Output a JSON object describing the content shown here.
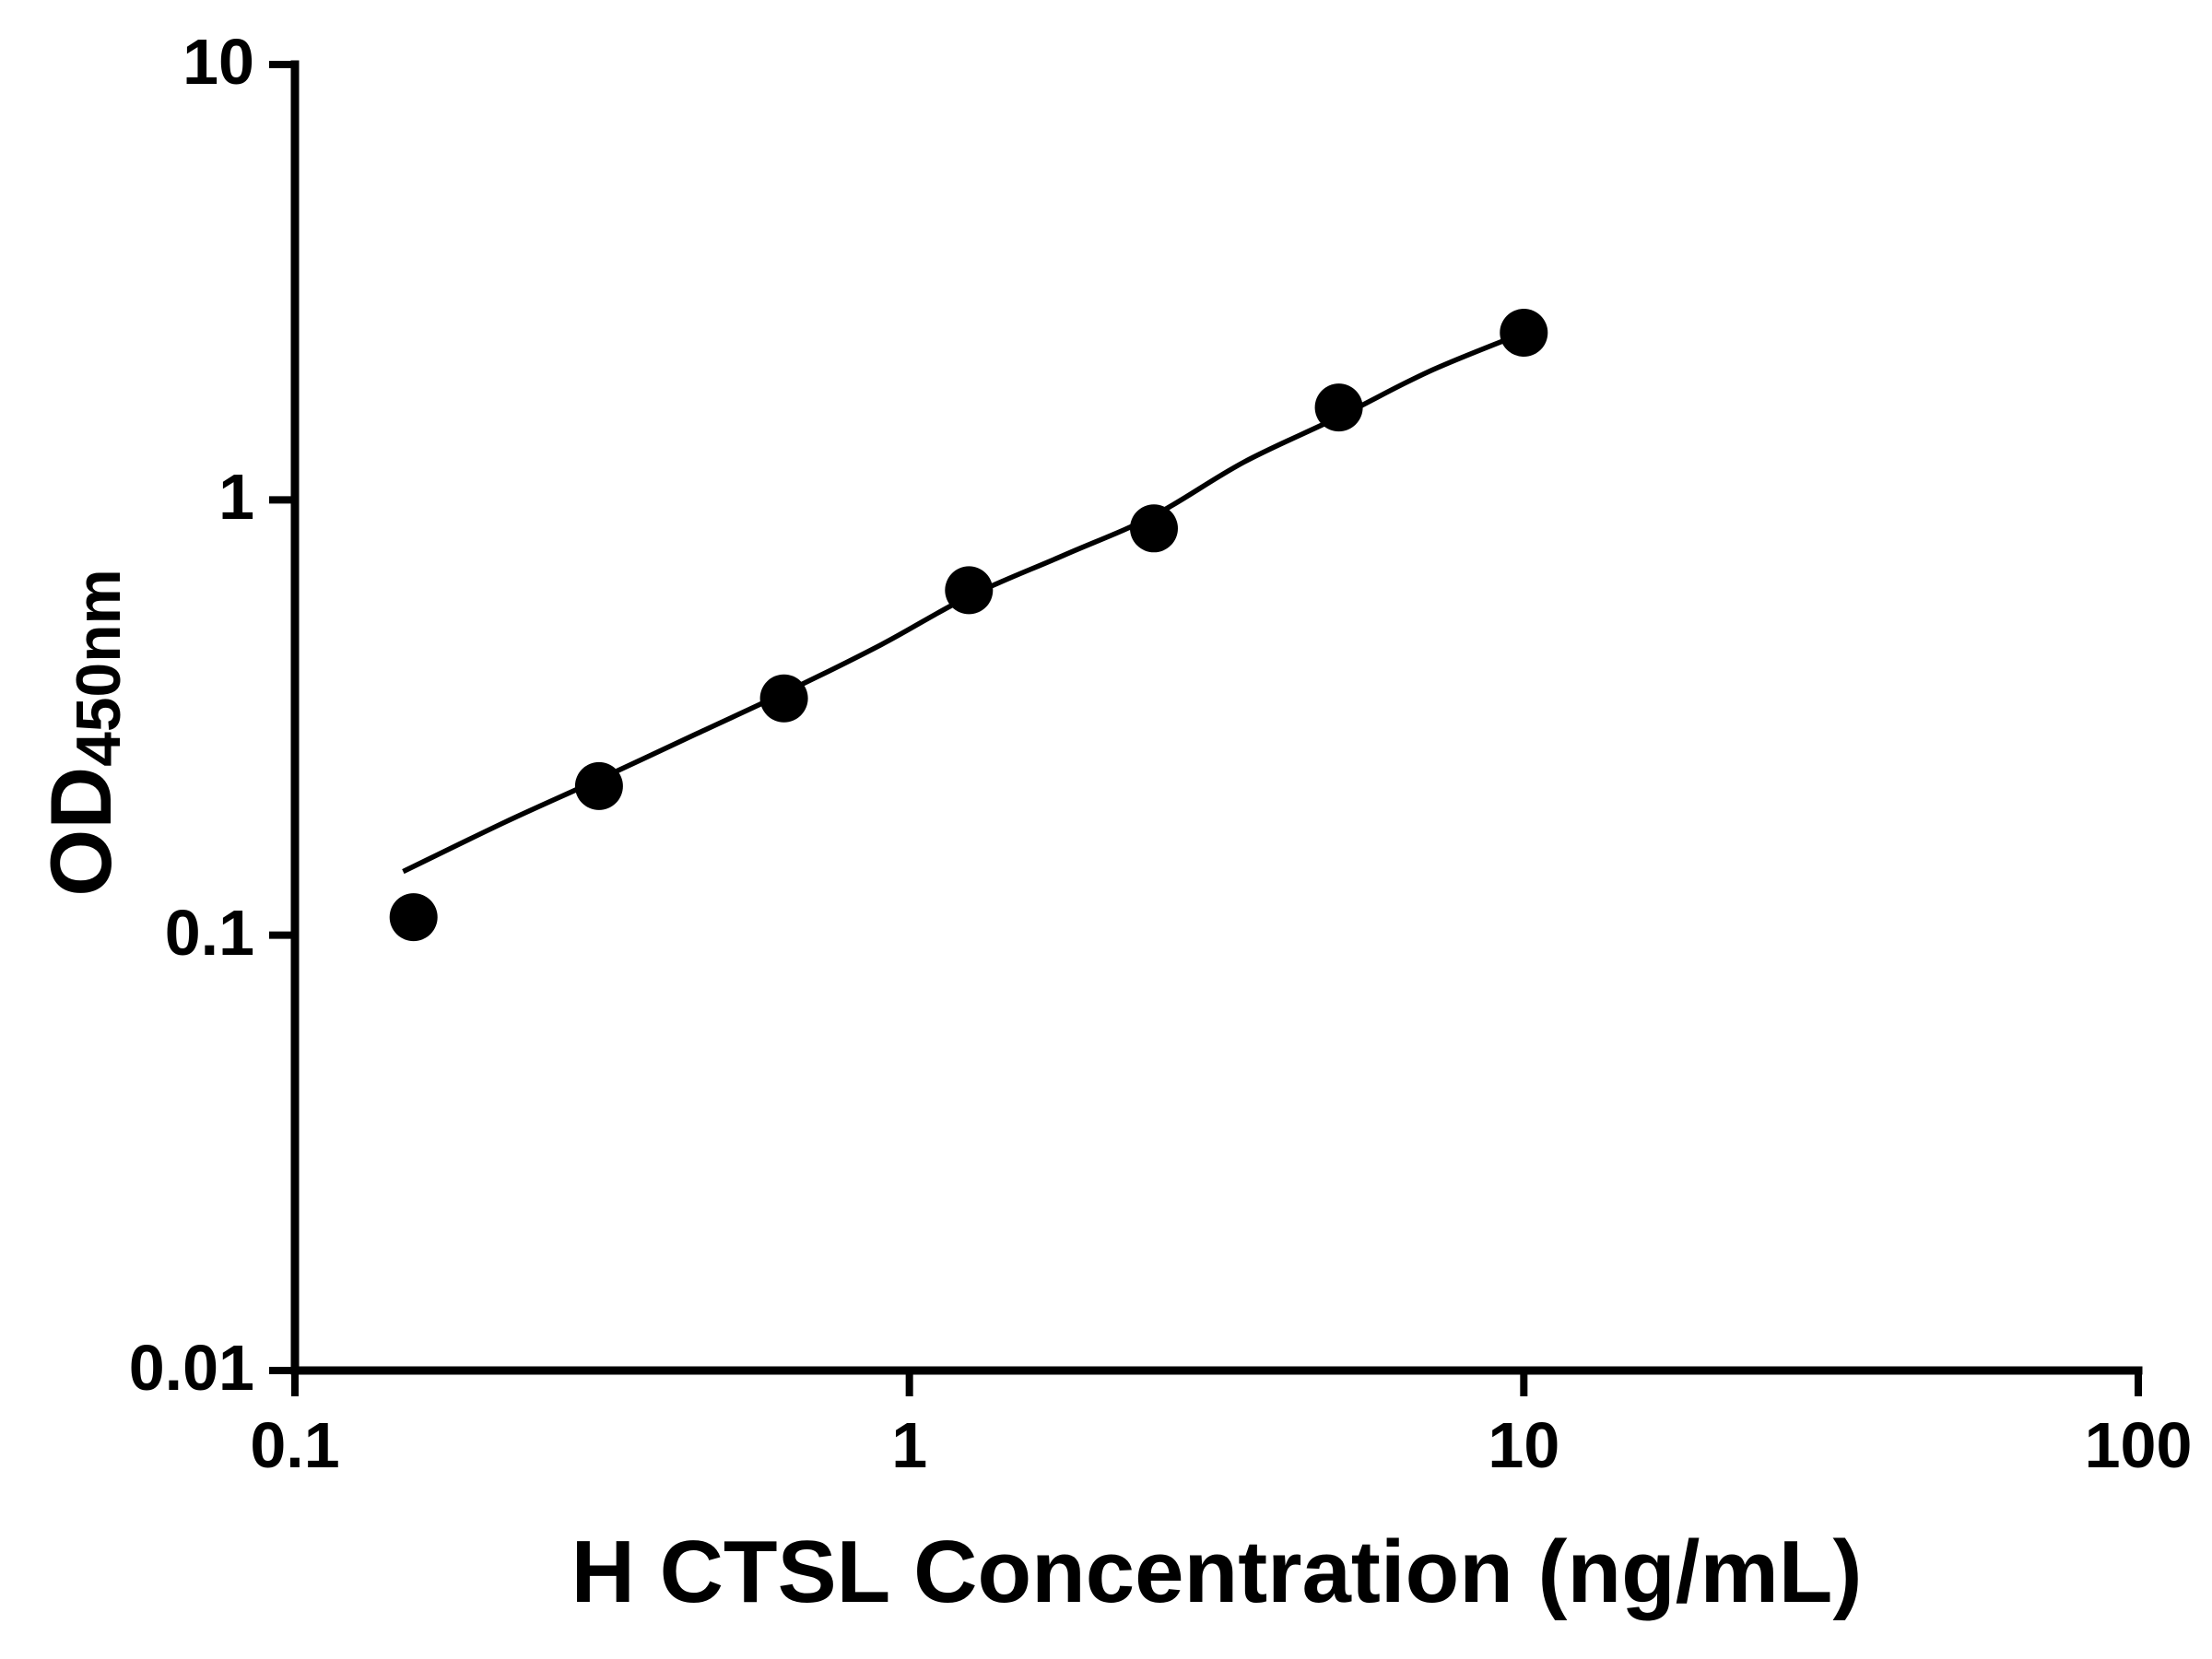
{
  "figure": {
    "background": "#ffffff"
  },
  "chart_data": {
    "type": "scatter",
    "title": "",
    "xlabel": "H CTSL Concentration (ng/mL)",
    "ylabel": "OD450nm",
    "ylabel_main": "OD",
    "ylabel_sub": "450nm",
    "x_scale": "log",
    "y_scale": "log",
    "xlim": [
      0.1,
      100
    ],
    "ylim": [
      0.01,
      10
    ],
    "x_ticks": [
      0.1,
      1,
      10,
      100
    ],
    "x_tick_labels": [
      "0.1",
      "1",
      "10",
      "100"
    ],
    "y_ticks": [
      0.01,
      0.1,
      1,
      10
    ],
    "y_tick_labels": [
      "0.01",
      "0.1",
      "1",
      "10"
    ],
    "grid": false,
    "legend": false,
    "axis_color": "#000000",
    "series": [
      {
        "marker": "circle",
        "color": "#000000",
        "x": [
          0.156,
          0.3125,
          0.625,
          1.25,
          2.5,
          5,
          10
        ],
        "y": [
          0.11,
          0.22,
          0.35,
          0.62,
          0.86,
          1.63,
          2.42
        ]
      }
    ],
    "fit_curve": {
      "color": "#000000",
      "x": [
        0.15,
        0.22,
        0.3125,
        0.45,
        0.625,
        0.9,
        1.25,
        1.8,
        2.5,
        3.5,
        5,
        7,
        10
      ],
      "y": [
        0.14,
        0.182,
        0.228,
        0.29,
        0.36,
        0.465,
        0.6,
        0.75,
        0.92,
        1.22,
        1.55,
        1.97,
        2.42
      ]
    }
  }
}
